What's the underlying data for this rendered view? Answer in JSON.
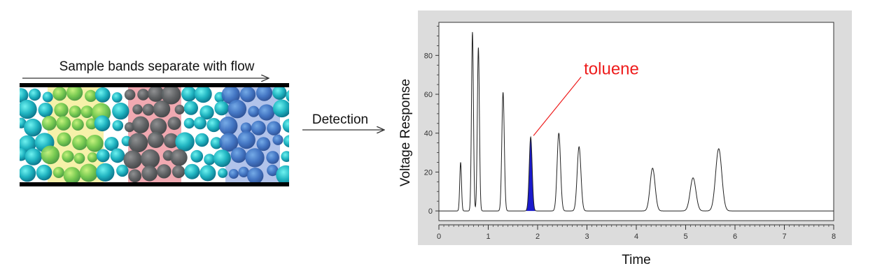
{
  "column": {
    "caption": "Sample bands separate with flow",
    "band_colors": [
      "#f5f0a0",
      "#f0a0a8",
      "#a8bde8"
    ]
  },
  "detection": {
    "label": "Detection"
  },
  "chart_data": {
    "type": "line",
    "xlabel": "Time",
    "ylabel": "Voltage Response",
    "xlim": [
      0,
      8
    ],
    "ylim": [
      -5,
      97
    ],
    "x_ticks": [
      "0",
      "1",
      "2",
      "3",
      "4",
      "5",
      "6",
      "7",
      "8"
    ],
    "y_ticks": [
      "0",
      "20",
      "40",
      "60",
      "80"
    ],
    "grid": false,
    "line_color": "#222222",
    "highlight_color": "#1a1acc",
    "series": [
      {
        "peaks": [
          {
            "x": 0.44,
            "y": 25
          },
          {
            "x": 0.68,
            "y": 92
          },
          {
            "x": 0.8,
            "y": 84
          },
          {
            "x": 1.3,
            "y": 61
          },
          {
            "x": 1.86,
            "y": 38,
            "highlight": true
          },
          {
            "x": 2.43,
            "y": 40
          },
          {
            "x": 2.84,
            "y": 33
          },
          {
            "x": 4.33,
            "y": 22
          },
          {
            "x": 5.15,
            "y": 17
          },
          {
            "x": 5.67,
            "y": 32
          }
        ]
      }
    ],
    "annotation": {
      "text": "toluene",
      "color": "#ee1c1c",
      "target_x": 1.86,
      "target_y": 38
    }
  }
}
